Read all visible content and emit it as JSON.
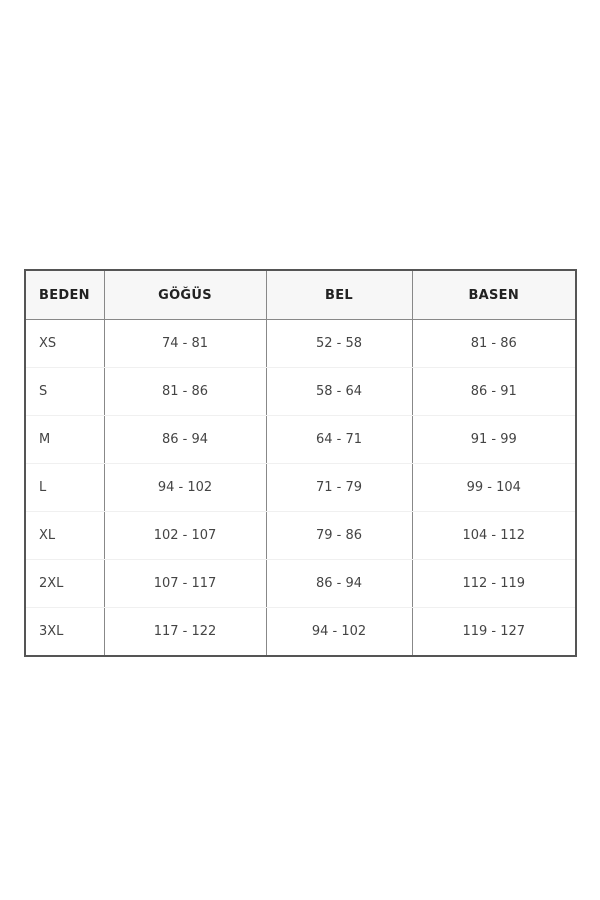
{
  "table": {
    "headers": [
      "BEDEN",
      "GÖĞÜS",
      "BEL",
      "BASEN"
    ],
    "rows": [
      [
        "XS",
        "74 - 81",
        "52 - 58",
        "81 - 86"
      ],
      [
        "S",
        "81 - 86",
        "58 - 64",
        "86 - 91"
      ],
      [
        "M",
        "86 - 94",
        "64 - 71",
        "91 - 99"
      ],
      [
        "L",
        "94 - 102",
        "71 - 79",
        "99 - 104"
      ],
      [
        "XL",
        "102 - 107",
        "79 - 86",
        "104 - 112"
      ],
      [
        "2XL",
        "107 - 117",
        "86 - 94",
        "112 - 119"
      ],
      [
        "3XL",
        "117 - 122",
        "94 - 102",
        "119 - 127"
      ]
    ]
  }
}
